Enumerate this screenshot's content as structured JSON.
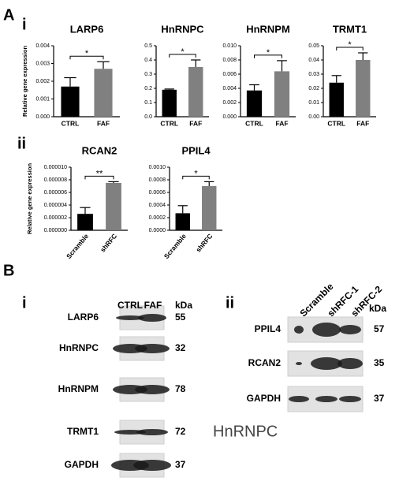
{
  "panels": {
    "A": "A",
    "Ai": "i",
    "Aii": "ii",
    "B": "B",
    "Bi": "i",
    "Bii": "ii"
  },
  "chart_data": [
    {
      "type": "bar",
      "title": "LARP6",
      "y_label": "Relative gene expression",
      "categories": [
        "CTRL",
        "FAF"
      ],
      "values": [
        0.0017,
        0.0027
      ],
      "errors": [
        0.0005,
        0.0004
      ],
      "colors": [
        "#000000",
        "#808080"
      ],
      "significance": "*",
      "ylim": [
        0,
        0.004
      ],
      "yticks": [
        {
          "value": 0,
          "label": "0.000"
        },
        0.001,
        0.002,
        0.003,
        0.004
      ]
    },
    {
      "type": "bar",
      "title": "HnRNPC",
      "categories": [
        "CTRL",
        "FAF"
      ],
      "values": [
        0.19,
        0.35
      ],
      "errors": [
        0.005,
        0.05
      ],
      "colors": [
        "#000000",
        "#808080"
      ],
      "significance": "*",
      "ylim": [
        0,
        0.5
      ],
      "yticks": [
        {
          "value": 0,
          "label": "0.0"
        },
        0.1,
        0.2,
        0.3,
        0.4,
        0.5
      ]
    },
    {
      "type": "bar",
      "title": "HnRNPM",
      "categories": [
        "CTRL",
        "FAF"
      ],
      "values": [
        0.0037,
        0.0064
      ],
      "errors": [
        0.0008,
        0.0015
      ],
      "colors": [
        "#000000",
        "#808080"
      ],
      "significance": "*",
      "ylim": [
        0,
        0.01
      ],
      "yticks": [
        {
          "value": 0,
          "label": "0.000"
        },
        0.002,
        0.004,
        0.006,
        0.008,
        {
          "value": 0.01,
          "label": "0.010"
        }
      ]
    },
    {
      "type": "bar",
      "title": "TRMT1",
      "categories": [
        "CTRL",
        "FAF"
      ],
      "values": [
        0.024,
        0.04
      ],
      "errors": [
        0.005,
        0.005
      ],
      "colors": [
        "#000000",
        "#808080"
      ],
      "significance": "*",
      "ylim": [
        0,
        0.05
      ],
      "yticks": [
        {
          "value": 0,
          "label": "0.00"
        },
        0.01,
        0.02,
        0.03,
        0.04,
        0.05
      ]
    },
    {
      "type": "bar",
      "title": "RCAN2",
      "y_label": "Relative gene expression",
      "categories": [
        "Scramble",
        "shRFC"
      ],
      "values": [
        2.6e-06,
        7.5e-06
      ],
      "errors": [
        1e-06,
        2e-07
      ],
      "colors": [
        "#000000",
        "#808080"
      ],
      "significance": "**",
      "ylim": [
        0,
        1e-05
      ],
      "yticks": [
        {
          "value": 0,
          "label": "0.000000"
        },
        2e-06,
        4e-06,
        6e-06,
        8e-06,
        {
          "value": 1e-05,
          "label": "0.000010"
        }
      ]
    },
    {
      "type": "bar",
      "title": "PPIL4",
      "categories": [
        "Scramble",
        "shRFC"
      ],
      "values": [
        0.00027,
        0.0007
      ],
      "errors": [
        0.00012,
        7e-05
      ],
      "colors": [
        "#000000",
        "#808080"
      ],
      "significance": "*",
      "ylim": [
        0,
        0.001
      ],
      "yticks": [
        {
          "value": 0,
          "label": "0.0000"
        },
        0.0002,
        0.0004,
        0.0006,
        0.0008,
        {
          "value": 0.001,
          "label": "0.0010"
        }
      ]
    }
  ],
  "blots": {
    "i": {
      "columns": [
        "CTRL",
        "FAF"
      ],
      "unit": "kDa",
      "rows": [
        {
          "label": "LARP6",
          "kda": "55"
        },
        {
          "label": "HnRNPC",
          "kda": "32"
        },
        {
          "label": "HnRNPM",
          "kda": "78"
        },
        {
          "label": "TRMT1",
          "kda": "72"
        },
        {
          "label": "GAPDH",
          "kda": "37"
        }
      ]
    },
    "ii": {
      "columns": [
        "Scramble",
        "shRFC-1",
        "shRFC-2"
      ],
      "unit": "kDa",
      "rows": [
        {
          "label": "PPIL4",
          "kda": "57"
        },
        {
          "label": "RCAN2",
          "kda": "35"
        },
        {
          "label": "GAPDH",
          "kda": "37"
        }
      ]
    }
  },
  "stray_label": "HnRNPC"
}
